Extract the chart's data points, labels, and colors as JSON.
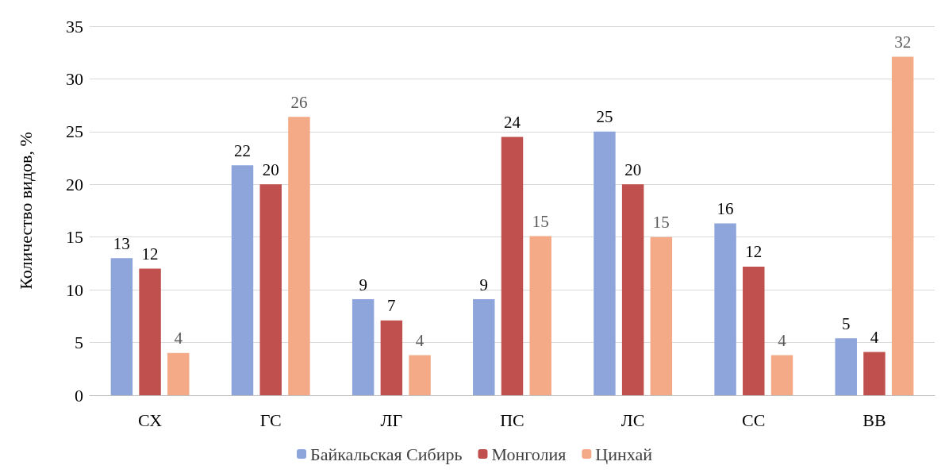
{
  "chart_data": {
    "type": "bar",
    "ylabel": "Количество видов, %",
    "categories": [
      "СХ",
      "ГС",
      "ЛГ",
      "ПС",
      "ЛС",
      "СС",
      "ВВ"
    ],
    "series": [
      {
        "name": "Байкальская Сибирь",
        "color": "#8ea5db",
        "values": [
          13,
          21.8,
          9.1,
          9.1,
          25,
          16.3,
          5.4
        ],
        "value_labels": [
          "13",
          "22",
          "9",
          "9",
          "25",
          "16",
          "5"
        ]
      },
      {
        "name": "Монголия",
        "color": "#c0504d",
        "values": [
          12,
          20,
          7.1,
          24.5,
          20,
          12.2,
          4.1
        ],
        "value_labels": [
          "12",
          "20",
          "7",
          "24",
          "20",
          "12",
          "4"
        ]
      },
      {
        "name": "Цинхай",
        "color": "#f4a987",
        "values": [
          4,
          26.4,
          3.8,
          15.1,
          15,
          3.8,
          32.1
        ],
        "value_labels": [
          "4",
          "26",
          "4",
          "15",
          "15",
          "4",
          "32"
        ]
      }
    ],
    "ylim": [
      0,
      35
    ],
    "yticks": [
      0,
      5,
      10,
      15,
      20,
      25,
      30,
      35
    ],
    "grid": "y",
    "legend": "bottom"
  }
}
